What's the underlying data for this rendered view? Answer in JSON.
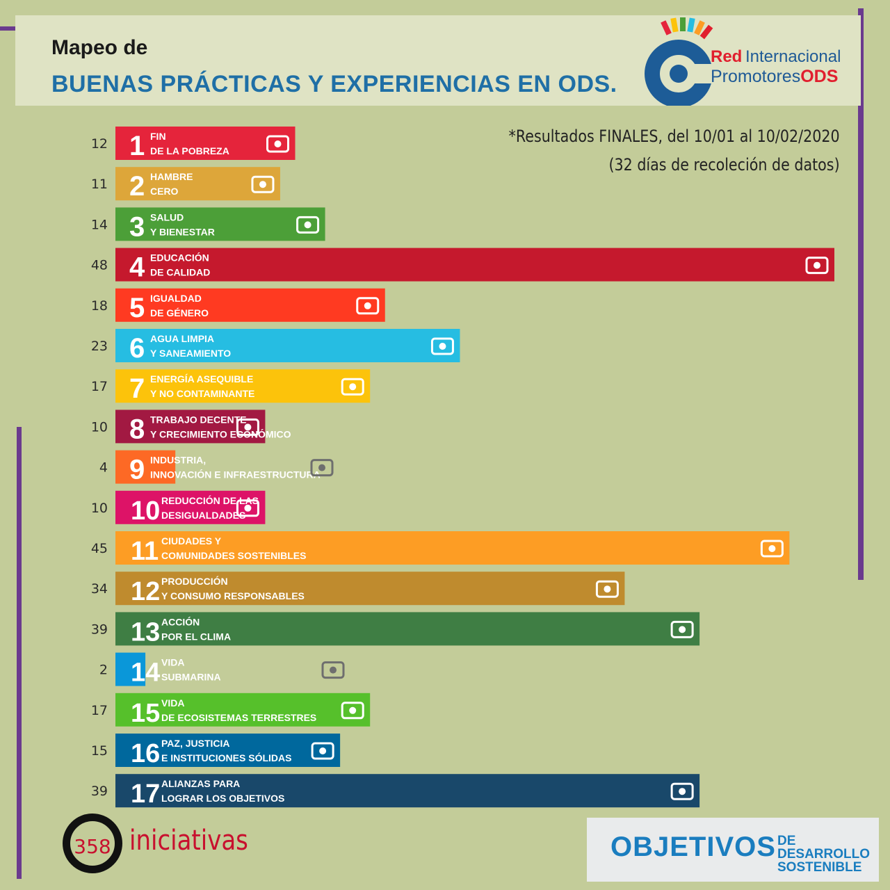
{
  "header": {
    "title_line1": "Mapeo de",
    "title_line2": "BUENAS PRÁCTICAS Y EXPERIENCIAS EN ODS."
  },
  "logo": {
    "red": "Red",
    "internacional": "Internacional",
    "promotores": "Promotores",
    "ods": "ODS"
  },
  "note": {
    "line1": "*Resultados FINALES, del 10/01 al 10/02/2020",
    "line2": "(32 días de recoleción de datos)"
  },
  "total": {
    "count": "358",
    "label": "iniciativas"
  },
  "brand": {
    "big": "OBJETIVOS",
    "small1": "DE DESARROLLO",
    "small2": "SOSTENIBLE"
  },
  "chart_data": {
    "type": "bar",
    "orientation": "horizontal",
    "categories": [
      {
        "n": "1",
        "l1": "FIN",
        "l2": "DE LA POBREZA",
        "color": "#e5243b",
        "icon": "people-icon"
      },
      {
        "n": "2",
        "l1": "HAMBRE",
        "l2": "CERO",
        "color": "#dda63a",
        "icon": "bowl-icon"
      },
      {
        "n": "3",
        "l1": "SALUD",
        "l2": "Y BIENESTAR",
        "color": "#4c9f38",
        "icon": "heartbeat-icon"
      },
      {
        "n": "4",
        "l1": "EDUCACIÓN",
        "l2": "DE CALIDAD",
        "color": "#c5192d",
        "icon": "book-icon"
      },
      {
        "n": "5",
        "l1": "IGUALDAD",
        "l2": "DE GÉNERO",
        "color": "#ff3a21",
        "icon": "gender-icon"
      },
      {
        "n": "6",
        "l1": "AGUA LIMPIA",
        "l2": "Y SANEAMIENTO",
        "color": "#26bde2",
        "icon": "water-icon"
      },
      {
        "n": "7",
        "l1": "ENERGÍA ASEQUIBLE",
        "l2": "Y NO CONTAMINANTE",
        "color": "#fcc30b",
        "icon": "sun-power-icon"
      },
      {
        "n": "8",
        "l1": "TRABAJO DECENTE",
        "l2": "Y CRECIMIENTO ECONÓMICO",
        "color": "#a21942",
        "icon": "growth-chart-icon"
      },
      {
        "n": "9",
        "l1": "INDUSTRIA,",
        "l2": "INNOVACIÓN E INFRAESTRUCTURA",
        "color": "#fd6925",
        "icon": "cubes-icon"
      },
      {
        "n": "10",
        "l1": "REDUCCIÓN DE LAS",
        "l2": "DESIGUALDADES",
        "color": "#dd1367",
        "icon": "equality-arrows-icon"
      },
      {
        "n": "11",
        "l1": "CIUDADES Y",
        "l2": "COMUNIDADES SOSTENIBLES",
        "color": "#fd9d24",
        "icon": "city-icon"
      },
      {
        "n": "12",
        "l1": "PRODUCCIÓN",
        "l2": "Y CONSUMO RESPONSABLES",
        "color": "#bf8b2e",
        "icon": "infinity-icon"
      },
      {
        "n": "13",
        "l1": "ACCIÓN",
        "l2": "POR EL CLIMA",
        "color": "#3f7e44",
        "icon": "eye-globe-icon"
      },
      {
        "n": "14",
        "l1": "VIDA",
        "l2": "SUBMARINA",
        "color": "#0a97d9",
        "icon": "fish-icon"
      },
      {
        "n": "15",
        "l1": "VIDA",
        "l2": "DE ECOSISTEMAS TERRESTRES",
        "color": "#56c02b",
        "icon": "tree-icon"
      },
      {
        "n": "16",
        "l1": "PAZ, JUSTICIA",
        "l2": "E INSTITUCIONES SÓLIDAS",
        "color": "#00689d",
        "icon": "dove-icon"
      },
      {
        "n": "17",
        "l1": "ALIANZAS PARA",
        "l2": "LOGRAR LOS OBJETIVOS",
        "color": "#19486a",
        "icon": "rings-icon"
      }
    ],
    "values": [
      12,
      11,
      14,
      48,
      18,
      23,
      17,
      10,
      4,
      10,
      45,
      34,
      39,
      2,
      17,
      15,
      39
    ]
  }
}
